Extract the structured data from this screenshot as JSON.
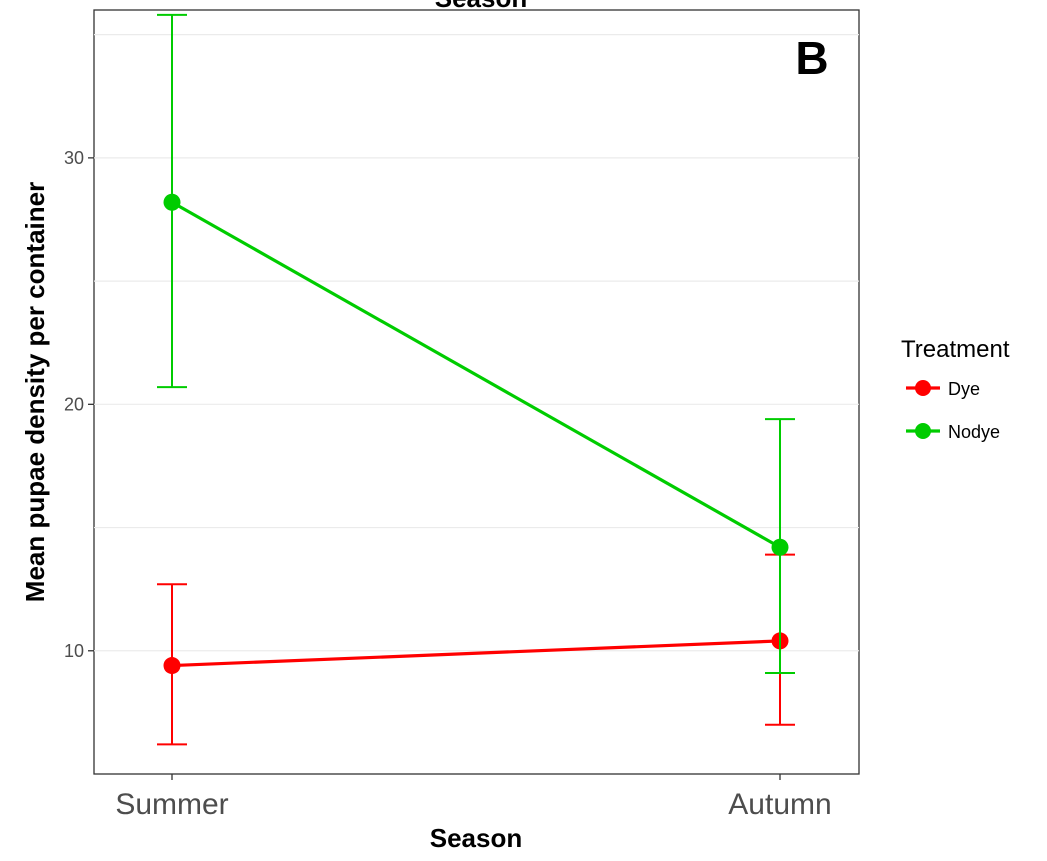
{
  "chart_data": {
    "type": "line",
    "title": "Season",
    "panel_label": "B",
    "xlabel": "Season",
    "ylabel": "Mean pupae density per container",
    "categories": [
      "Summer",
      "Autumn"
    ],
    "ylim": [
      5,
      36
    ],
    "yticks": [
      10,
      20,
      30
    ],
    "minor_gridlines": [
      15,
      25,
      35
    ],
    "grid": true,
    "legend": {
      "title": "Treatment",
      "placement": "right",
      "entries": [
        "Dye",
        "Nodye"
      ]
    },
    "series": [
      {
        "name": "Dye",
        "color": "#ff0000",
        "values": [
          9.4,
          10.4
        ],
        "error_low": [
          6.2,
          7.0
        ],
        "error_high": [
          12.7,
          13.9
        ]
      },
      {
        "name": "Nodye",
        "color": "#00cc00",
        "values": [
          28.2,
          14.2
        ],
        "error_low": [
          20.7,
          9.1
        ],
        "error_high": [
          35.8,
          19.4
        ]
      }
    ]
  }
}
